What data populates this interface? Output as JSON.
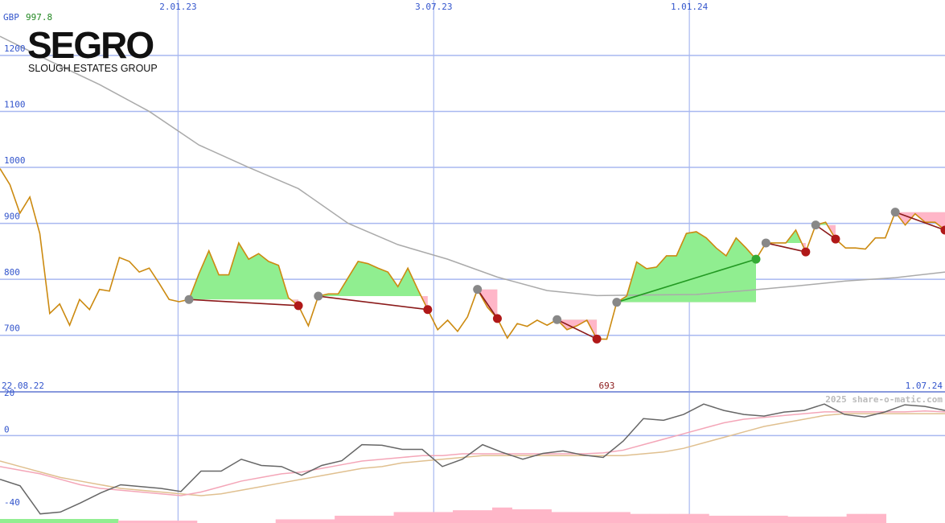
{
  "chart_data": {
    "type": "line",
    "logo": {
      "name": "SEGRO",
      "subtitle": "SLOUGH ESTATES GROUP"
    },
    "currency": "GBP",
    "start_label": "22.08.22",
    "end_label": "1.07.24",
    "watermark": "2025 share-o-matic.com",
    "color": "#cc8a10",
    "values": [
      997.8,
      969,
      918,
      947,
      882,
      739,
      756,
      718,
      764,
      746,
      782,
      779,
      839,
      832,
      813,
      820,
      793,
      764,
      760,
      764,
      810,
      851,
      808,
      808,
      865,
      836,
      846,
      832,
      825,
      767,
      753,
      717,
      770,
      774,
      774,
      803,
      832,
      828,
      820,
      813,
      787,
      820,
      782,
      746,
      710,
      727,
      707,
      733,
      782,
      750,
      730,
      695,
      721,
      716,
      727,
      718,
      728,
      710,
      717,
      727,
      693.4,
      693,
      759,
      770,
      831,
      819,
      822,
      842,
      842,
      882,
      885,
      874,
      856,
      842,
      874,
      856,
      836,
      865,
      865,
      865,
      888,
      849,
      897,
      902,
      872,
      856,
      856,
      854,
      874,
      874,
      920,
      897,
      917,
      902,
      902,
      888
    ],
    "average": {
      "color": "#aaaaaa",
      "values": [
        1234,
        1190,
        1148,
        1100,
        1040,
        1000,
        962,
        900,
        862,
        836,
        804,
        780,
        771,
        772,
        773,
        780,
        788,
        797,
        803,
        813
      ]
    },
    "signals": [
      [
        19,
        30
      ],
      [
        32,
        43
      ],
      [
        48,
        50
      ],
      [
        56,
        60
      ],
      [
        62,
        76
      ],
      [
        77,
        81
      ],
      [
        82,
        84
      ],
      [
        90,
        95
      ]
    ],
    "xlim": [
      0,
      95
    ],
    "xticks": [
      {
        "value": 17.9,
        "label": "2.01.23"
      },
      {
        "value": 43.6,
        "label": "3.07.23"
      },
      {
        "value": 69.3,
        "label": "1.01.24"
      }
    ],
    "ylim": [
      599,
      1299
    ],
    "yticks": [
      700,
      800,
      900,
      1000,
      1100,
      1200
    ],
    "grid": true,
    "indicator": {
      "ylim": [
        -48,
        24
      ],
      "yticks": [
        -40,
        0,
        20
      ],
      "series": [
        {
          "color": "#666666",
          "values": [
            -24,
            -27.6,
            -43,
            -42,
            -37,
            -31.5,
            -27,
            -28,
            -29,
            -30.7,
            -19.5,
            -19.5,
            -13,
            -16.4,
            -17,
            -21.8,
            -16.4,
            -13.8,
            -5,
            -5.3,
            -7.6,
            -7.6,
            -17,
            -13,
            -5,
            -9.3,
            -13,
            -9.8,
            -8.4,
            -10.7,
            -12,
            -3,
            9.3,
            8.4,
            11.6,
            17.3,
            13.8,
            11.6,
            10.7,
            12.9,
            13.8,
            17.3,
            11.6,
            10.2,
            12.9,
            16.9,
            16,
            13.8
          ]
        },
        {
          "color": "#f4a6b8",
          "values": [
            -17,
            -19,
            -21,
            -24,
            -27,
            -29,
            -30,
            -31,
            -32,
            -33,
            -31,
            -28,
            -25,
            -23,
            -21,
            -20,
            -18,
            -16,
            -14,
            -13,
            -12,
            -11,
            -11,
            -10,
            -10,
            -10,
            -10,
            -10,
            -10,
            -10,
            -9.5,
            -8,
            -5,
            -2,
            1,
            4,
            7,
            9,
            10,
            11,
            12,
            13,
            13,
            13,
            13,
            13,
            13.5,
            13
          ]
        },
        {
          "color": "#e0c090",
          "values": [
            -14,
            -17,
            -20,
            -23,
            -25,
            -27,
            -29,
            -30,
            -31,
            -32,
            -33,
            -32,
            -30,
            -28,
            -26,
            -24,
            -22,
            -20,
            -18,
            -17,
            -15,
            -14,
            -13,
            -12,
            -11,
            -11,
            -11,
            -11,
            -11,
            -11,
            -11,
            -11,
            -10,
            -9,
            -7,
            -4,
            -1,
            2,
            5,
            7,
            9,
            11,
            12,
            12,
            12,
            12,
            12,
            12
          ]
        }
      ],
      "bars": [
        {
          "color": "#90ee90",
          "values": [
            -45.8,
            -45.8,
            -45.8,
            -45.8,
            -45.8,
            -45.8,
            null,
            null,
            null,
            null,
            null,
            null,
            null,
            null,
            null,
            null,
            null,
            null,
            null,
            null,
            null,
            null,
            null,
            null,
            null,
            null,
            null,
            null,
            null,
            null,
            null,
            null,
            null,
            null,
            null,
            null,
            null,
            null,
            null,
            null,
            null,
            null,
            null,
            null,
            null,
            null,
            null,
            null
          ]
        },
        {
          "color": "#ffb6c8",
          "values": [
            null,
            null,
            null,
            null,
            null,
            null,
            -46.7,
            -46.7,
            -46.7,
            -46.7,
            null,
            null,
            null,
            null,
            -46,
            -46,
            -46,
            -44,
            -44,
            -44,
            -42,
            -42,
            -42,
            -41,
            -41,
            -39.5,
            -40.5,
            -40.5,
            -42,
            -42,
            -42,
            -42,
            -43,
            -43,
            -43,
            -43,
            -44,
            -44,
            -44,
            -44,
            -44.5,
            -44.5,
            -44.5,
            -43,
            -43,
            null,
            null,
            null
          ]
        }
      ]
    }
  }
}
